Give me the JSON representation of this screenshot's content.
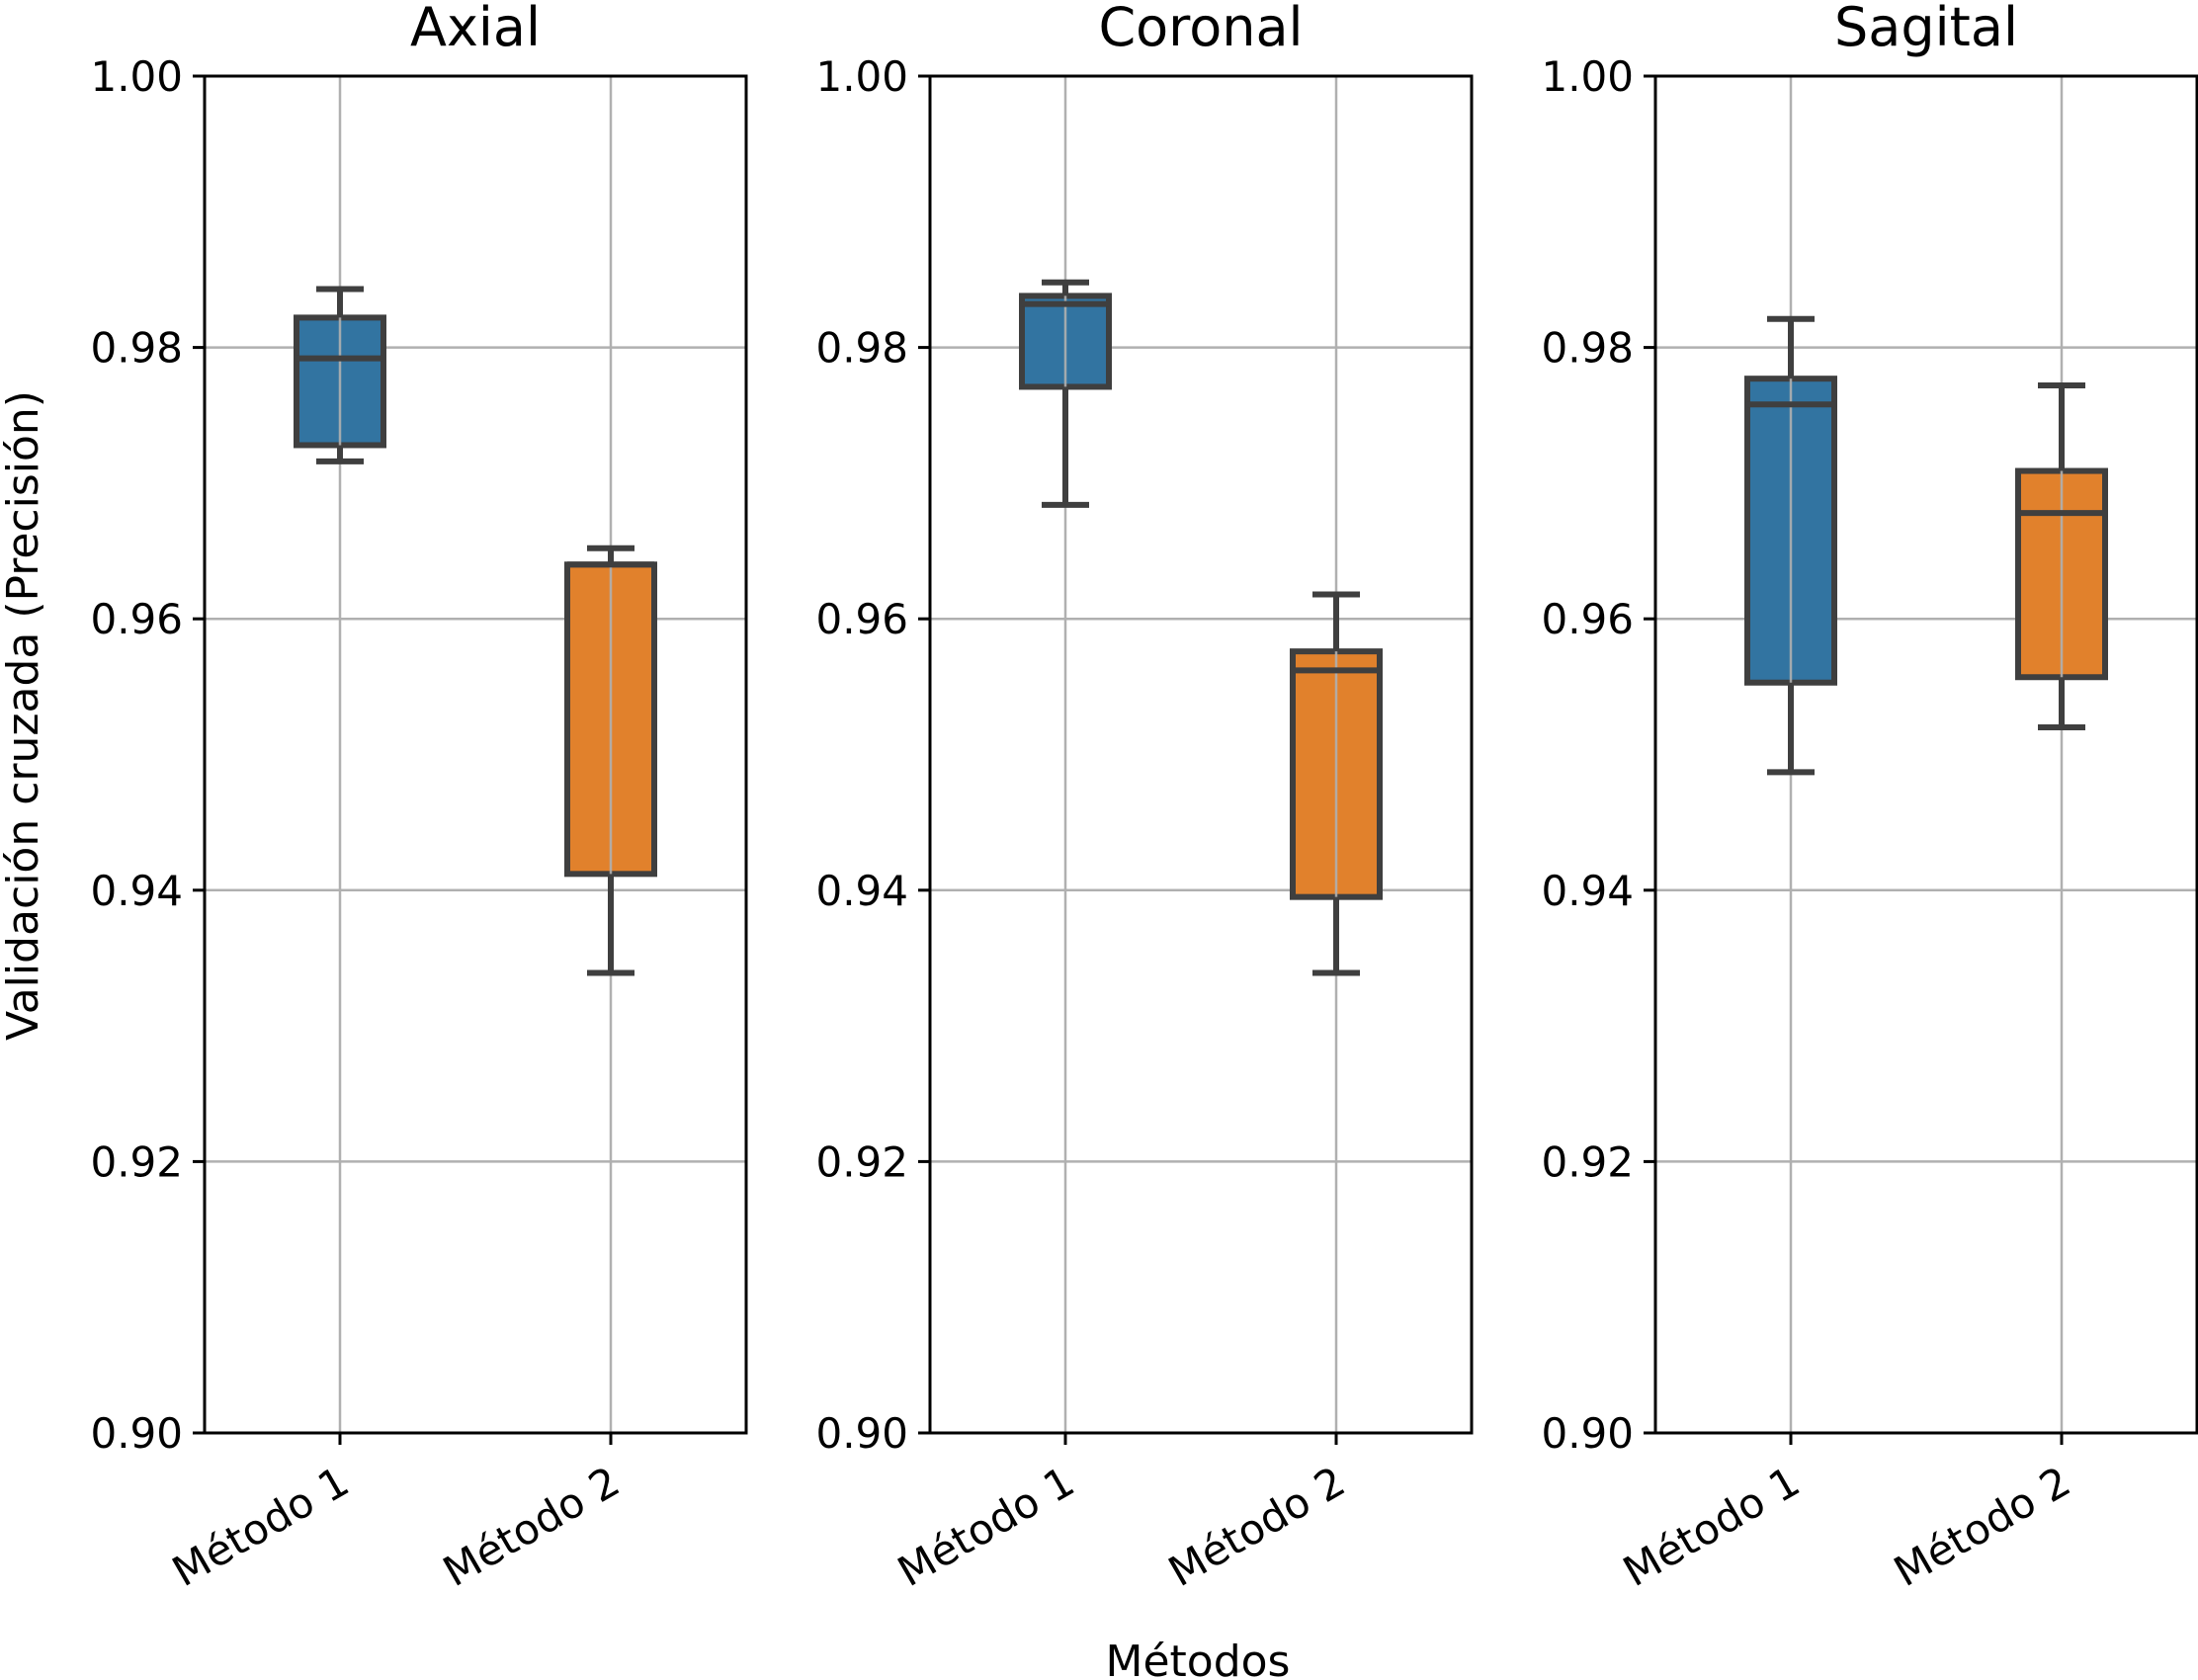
{
  "figure": {
    "ylabel": "Validación cruzada (Precisión)",
    "xlabel": "Métodos"
  },
  "colors": {
    "metodo1": "#3274a1",
    "metodo2": "#e1812c",
    "box_edge": "#3f3f3f",
    "grid": "#b0b0b0",
    "axes": "#000000"
  },
  "chart_data": [
    {
      "type": "box",
      "title": "Axial",
      "categories": [
        "Método 1",
        "Método 2"
      ],
      "ylim": [
        0.9,
        1.0
      ],
      "yticks": [
        "0.90",
        "0.92",
        "0.94",
        "0.96",
        "0.98",
        "1.00"
      ],
      "grid": true,
      "boxes": [
        {
          "name": "Método 1",
          "whislo": 0.9716,
          "q1": 0.9728,
          "med": 0.9792,
          "q3": 0.9822,
          "whishi": 0.9843
        },
        {
          "name": "Método 2",
          "whislo": 0.9339,
          "q1": 0.9412,
          "med": 0.964,
          "q3": 0.964,
          "whishi": 0.9652
        }
      ]
    },
    {
      "type": "box",
      "title": "Coronal",
      "categories": [
        "Método 1",
        "Método 2"
      ],
      "ylim": [
        0.9,
        1.0
      ],
      "yticks": [
        "0.90",
        "0.92",
        "0.94",
        "0.96",
        "0.98",
        "1.00"
      ],
      "grid": true,
      "boxes": [
        {
          "name": "Método 1",
          "whislo": 0.9684,
          "q1": 0.9771,
          "med": 0.9832,
          "q3": 0.9838,
          "whishi": 0.9848
        },
        {
          "name": "Método 2",
          "whislo": 0.9339,
          "q1": 0.9395,
          "med": 0.9562,
          "q3": 0.9576,
          "whishi": 0.9618
        }
      ]
    },
    {
      "type": "box",
      "title": "Sagital",
      "categories": [
        "Método 1",
        "Método 2"
      ],
      "ylim": [
        0.9,
        1.0
      ],
      "yticks": [
        "0.90",
        "0.92",
        "0.94",
        "0.96",
        "0.98",
        "1.00"
      ],
      "grid": true,
      "boxes": [
        {
          "name": "Método 1",
          "whislo": 0.9487,
          "q1": 0.9553,
          "med": 0.9758,
          "q3": 0.9777,
          "whishi": 0.9821
        },
        {
          "name": "Método 2",
          "whislo": 0.952,
          "q1": 0.9557,
          "med": 0.9678,
          "q3": 0.9709,
          "whishi": 0.9772
        }
      ]
    }
  ]
}
